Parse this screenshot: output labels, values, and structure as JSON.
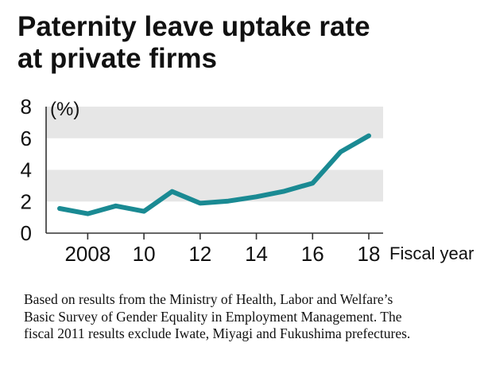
{
  "title": {
    "line1": "Paternity leave uptake rate",
    "line2": "at private firms"
  },
  "chart_data": {
    "type": "line",
    "title": "Paternity leave uptake rate at private firms",
    "ylabel": "(%)",
    "xlabel": "Fiscal year",
    "ylim": [
      0,
      8
    ],
    "yticks": [
      0,
      2,
      4,
      6,
      8
    ],
    "xlim": [
      2007,
      2018
    ],
    "xticks": [
      {
        "value": 2008,
        "label": "2008"
      },
      {
        "value": 2010,
        "label": "10"
      },
      {
        "value": 2012,
        "label": "12"
      },
      {
        "value": 2014,
        "label": "14"
      },
      {
        "value": 2016,
        "label": "16"
      },
      {
        "value": 2018,
        "label": "18"
      }
    ],
    "grid": "alternating horizontal bands",
    "series": [
      {
        "name": "Paternity leave uptake rate",
        "color": "#1a8a93",
        "x": [
          2007,
          2008,
          2009,
          2010,
          2011,
          2012,
          2013,
          2014,
          2015,
          2016,
          2017,
          2018
        ],
        "values": [
          1.56,
          1.23,
          1.72,
          1.38,
          2.63,
          1.89,
          2.03,
          2.3,
          2.65,
          3.16,
          5.14,
          6.16
        ]
      }
    ]
  },
  "note": {
    "line1": "Based on results from the Ministry of Health, Labor and Welfare’s",
    "line2": "Basic Survey of Gender Equality in Employment Management. The",
    "line3": "fiscal 2011 results exclude Iwate, Miyagi and Fukushima prefectures."
  }
}
